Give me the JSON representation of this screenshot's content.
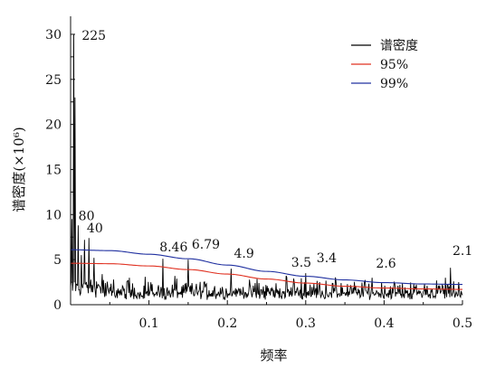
{
  "chart_data": {
    "type": "line",
    "xlabel": "频率",
    "ylabel": "谱密度(×10⁶)",
    "xlim": [
      0,
      0.5
    ],
    "ylim": [
      0,
      32
    ],
    "x_ticks": [
      "0.1",
      "0.2",
      "0.3",
      "0.4",
      "0.5"
    ],
    "y_ticks": [
      "0",
      "5",
      "10",
      "15",
      "20",
      "25",
      "30"
    ],
    "legend_position": "top-right",
    "series": [
      {
        "name": "谱密度",
        "color": "#000000",
        "style": "spiky-noise",
        "baseline": 1.5,
        "peaks": [
          {
            "x": 0.002,
            "y": 9.5
          },
          {
            "x": 0.004,
            "y": 30.0
          },
          {
            "x": 0.006,
            "y": 23.0
          },
          {
            "x": 0.01,
            "y": 8.8
          },
          {
            "x": 0.014,
            "y": 5.5
          },
          {
            "x": 0.018,
            "y": 7.2
          },
          {
            "x": 0.023,
            "y": 7.4
          },
          {
            "x": 0.03,
            "y": 5.2
          },
          {
            "x": 0.04,
            "y": 3.4
          },
          {
            "x": 0.055,
            "y": 2.8
          },
          {
            "x": 0.075,
            "y": 3.0
          },
          {
            "x": 0.095,
            "y": 3.1
          },
          {
            "x": 0.118,
            "y": 5.1
          },
          {
            "x": 0.133,
            "y": 3.2
          },
          {
            "x": 0.15,
            "y": 5.0
          },
          {
            "x": 0.17,
            "y": 2.5
          },
          {
            "x": 0.205,
            "y": 4.0
          },
          {
            "x": 0.24,
            "y": 2.4
          },
          {
            "x": 0.275,
            "y": 3.2
          },
          {
            "x": 0.285,
            "y": 2.9
          },
          {
            "x": 0.3,
            "y": 3.5
          },
          {
            "x": 0.318,
            "y": 2.5
          },
          {
            "x": 0.345,
            "y": 2.4
          },
          {
            "x": 0.375,
            "y": 2.6
          },
          {
            "x": 0.385,
            "y": 3.0
          },
          {
            "x": 0.42,
            "y": 2.2
          },
          {
            "x": 0.455,
            "y": 2.1
          },
          {
            "x": 0.478,
            "y": 3.0
          },
          {
            "x": 0.485,
            "y": 4.1
          },
          {
            "x": 0.495,
            "y": 2.5
          }
        ]
      },
      {
        "name": "95%",
        "color": "#e03020",
        "x": [
          0,
          0.05,
          0.1,
          0.15,
          0.2,
          0.25,
          0.3,
          0.35,
          0.4,
          0.45,
          0.5
        ],
        "y": [
          4.6,
          4.55,
          4.3,
          3.9,
          3.4,
          2.85,
          2.4,
          2.05,
          1.85,
          1.75,
          1.7
        ]
      },
      {
        "name": "99%",
        "color": "#2030a0",
        "x": [
          0,
          0.05,
          0.1,
          0.15,
          0.2,
          0.25,
          0.3,
          0.35,
          0.4,
          0.45,
          0.5
        ],
        "y": [
          6.1,
          6.0,
          5.6,
          5.1,
          4.4,
          3.7,
          3.15,
          2.75,
          2.45,
          2.3,
          2.25
        ]
      }
    ],
    "annotations": [
      {
        "text": "225",
        "x": 0.005,
        "y": 30.0
      },
      {
        "text": "80",
        "x": 0.01,
        "y": 8.8
      },
      {
        "text": "40",
        "x": 0.023,
        "y": 7.4
      },
      {
        "text": "8.46",
        "x": 0.118,
        "y": 5.1
      },
      {
        "text": "6.79",
        "x": 0.15,
        "y": 5.0
      },
      {
        "text": "4.9",
        "x": 0.205,
        "y": 4.0
      },
      {
        "text": "3.5",
        "x": 0.285,
        "y": 3.5
      },
      {
        "text": "3.4",
        "x": 0.3,
        "y": 3.5
      },
      {
        "text": "2.6",
        "x": 0.385,
        "y": 3.0
      },
      {
        "text": "2.1",
        "x": 0.485,
        "y": 4.1
      }
    ]
  }
}
